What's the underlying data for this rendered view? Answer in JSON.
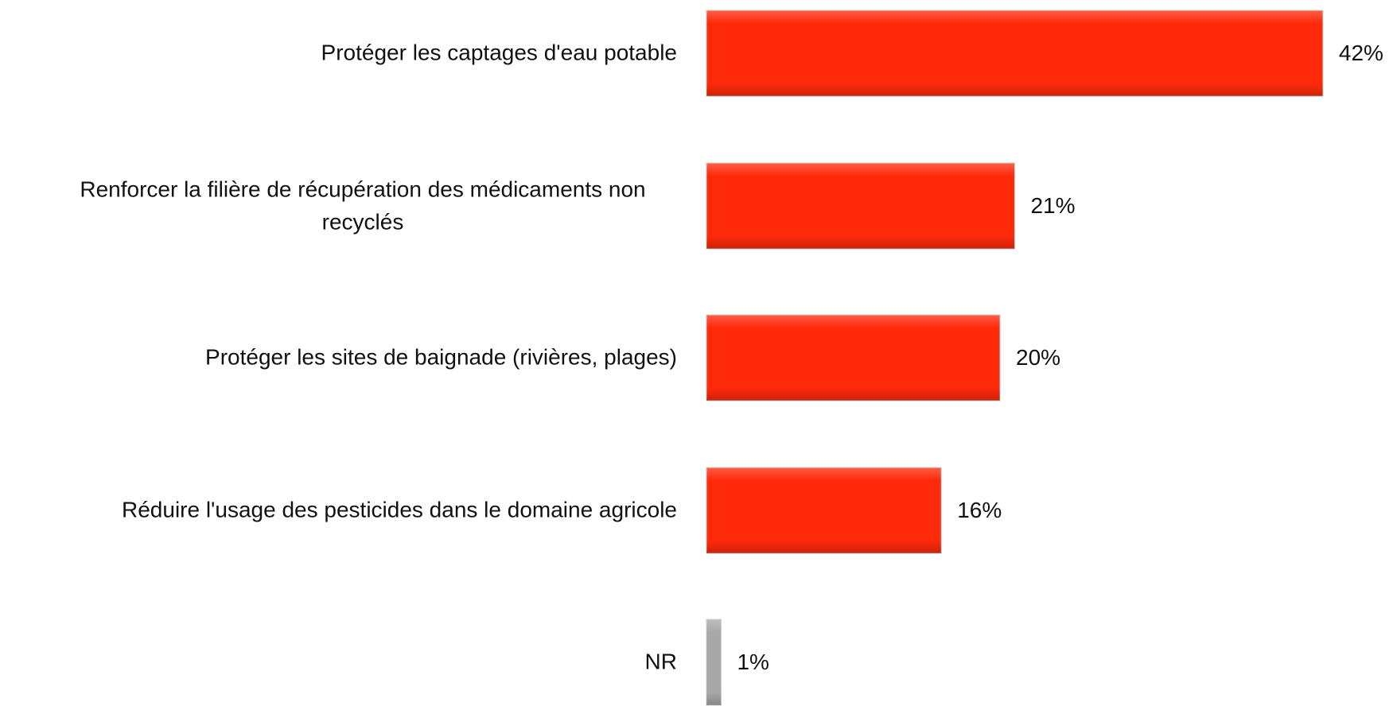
{
  "chart_data": {
    "type": "bar",
    "orientation": "horizontal",
    "categories": [
      "Protéger les captages d'eau potable",
      "Renforcer la filière de récupération des médicaments non recyclés",
      "Protéger les sites de baignade (rivières, plages)",
      "Réduire l'usage des pesticides dans le domaine agricole",
      "NR"
    ],
    "values": [
      42,
      21,
      20,
      16,
      1
    ],
    "value_labels": [
      "42%",
      "21%",
      "20%",
      "16%",
      "1%"
    ],
    "colors": [
      "#ff2a0a",
      "#ff2a0a",
      "#ff2a0a",
      "#ff2a0a",
      "#a8a8a8"
    ]
  }
}
